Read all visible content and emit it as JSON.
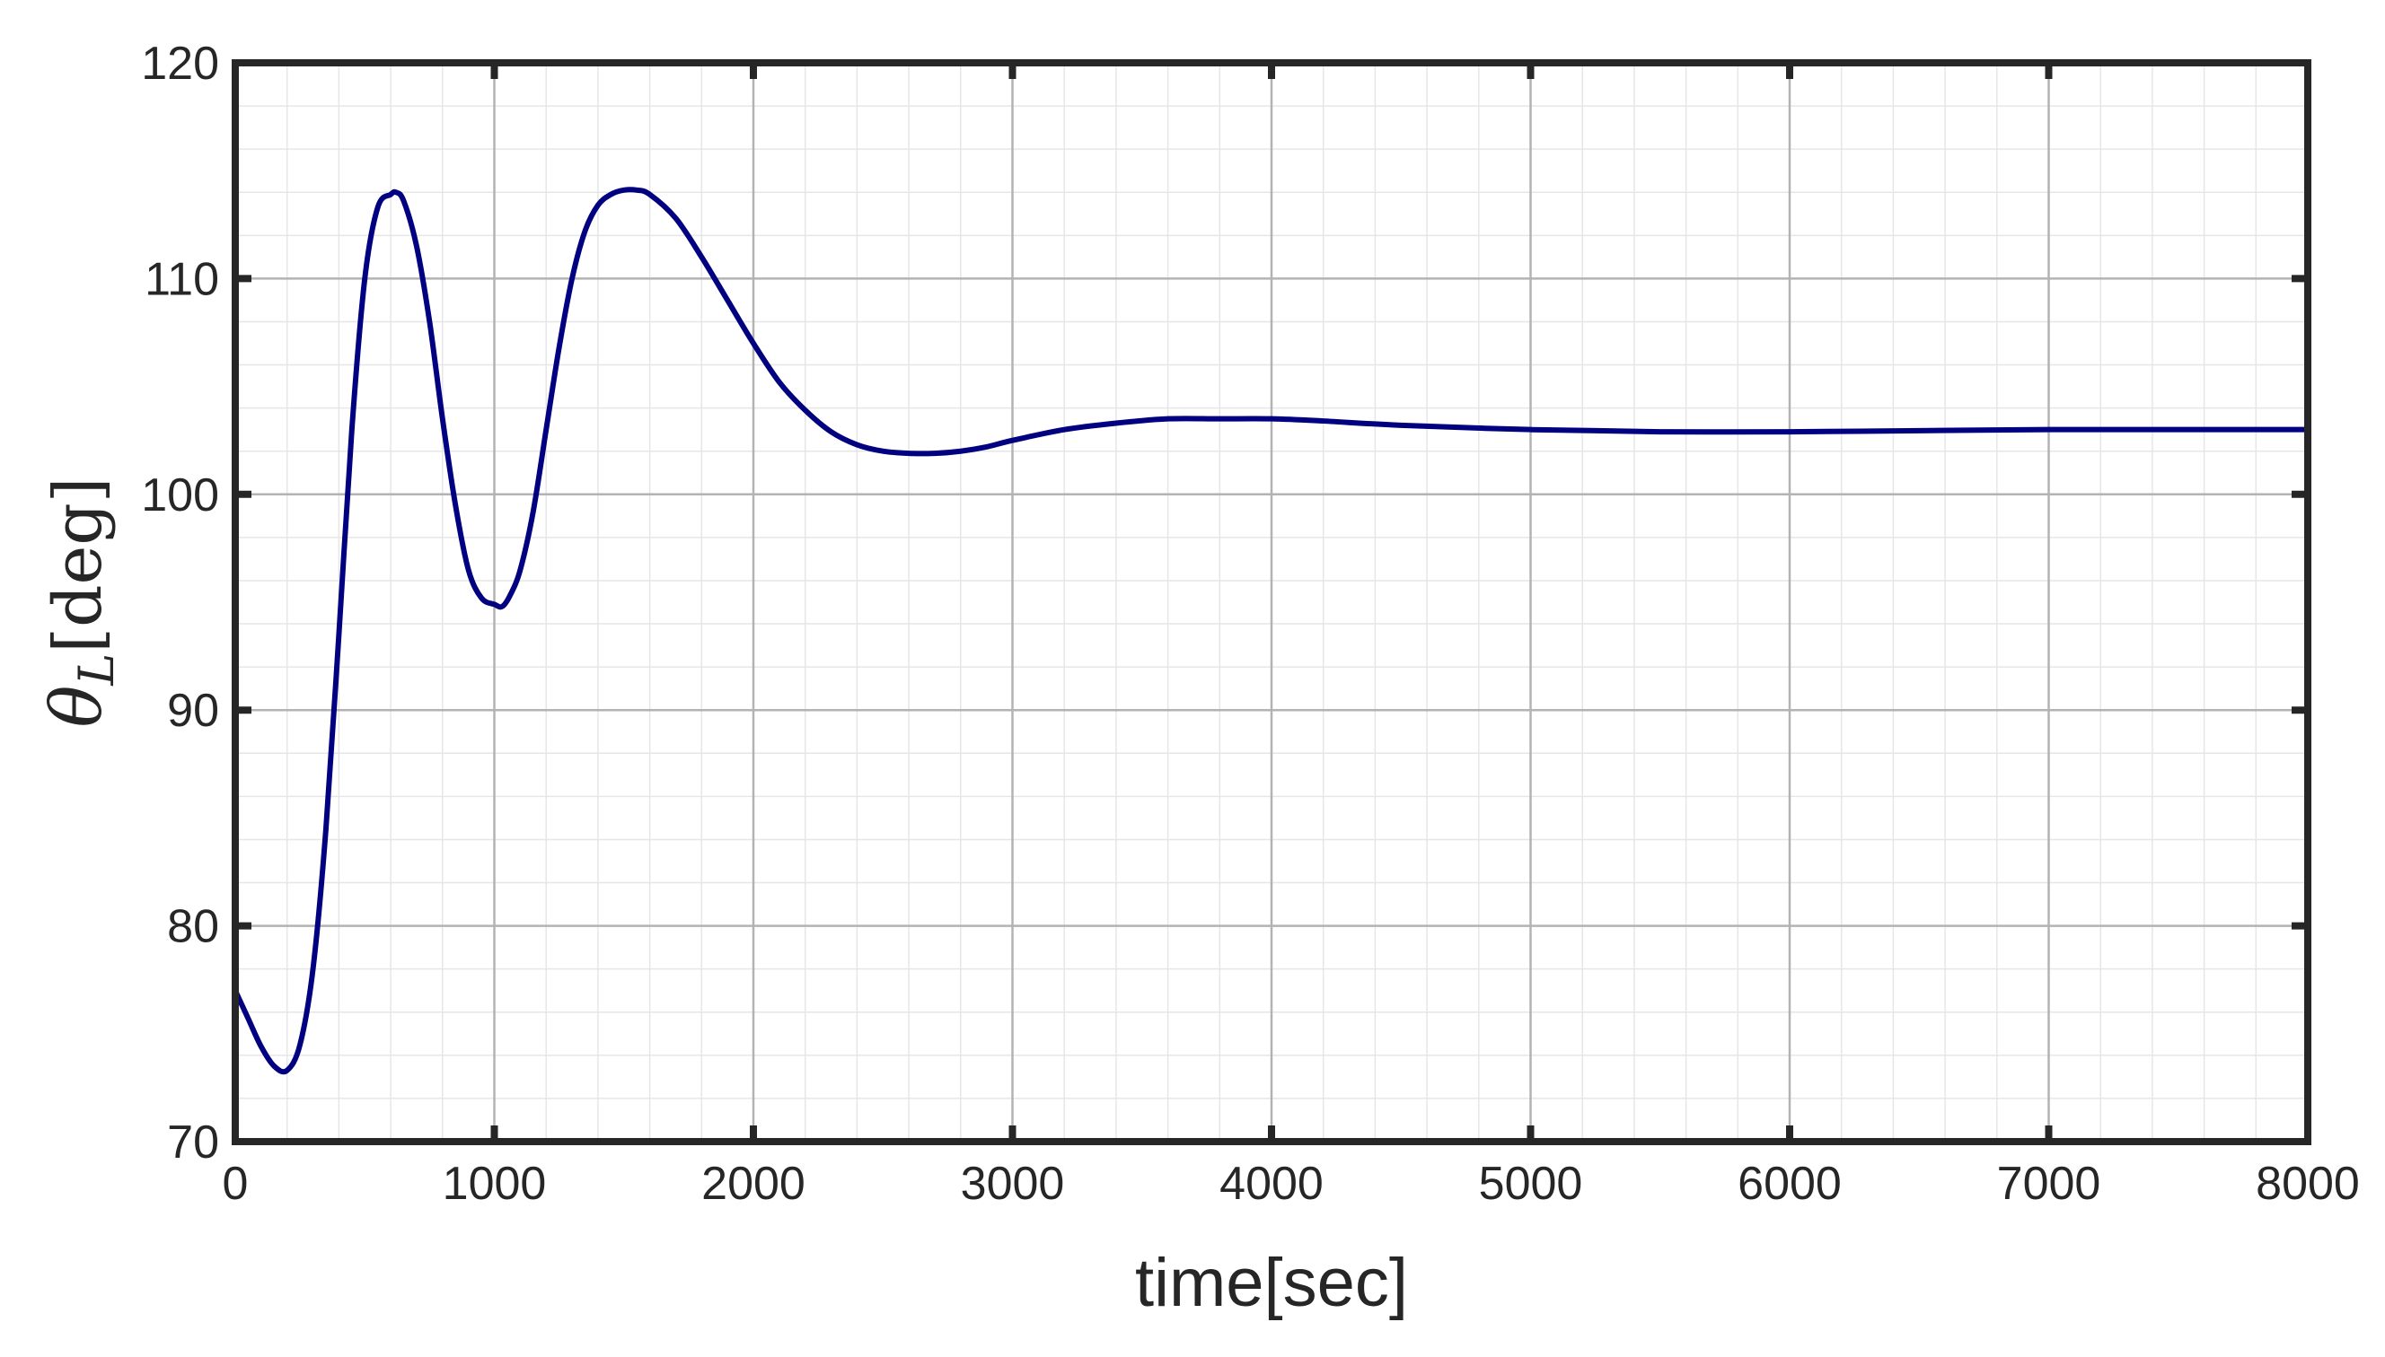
{
  "chart_data": {
    "type": "line",
    "title": "",
    "xlabel": "time[sec]",
    "ylabel": {
      "symbol": "θ",
      "subscript": "L",
      "unit": "[deg]"
    },
    "xlim": [
      0,
      8000
    ],
    "ylim": [
      70,
      120
    ],
    "xticks": [
      0,
      1000,
      2000,
      3000,
      4000,
      5000,
      6000,
      7000,
      8000
    ],
    "yticks": [
      70,
      80,
      90,
      100,
      110,
      120
    ],
    "x_tick_labels": [
      "0",
      "1000",
      "2000",
      "3000",
      "4000",
      "5000",
      "6000",
      "7000",
      "8000"
    ],
    "y_tick_labels": [
      "70",
      "80",
      "90",
      "100",
      "110",
      "120"
    ],
    "grid": "major and minor",
    "legend": "none",
    "series": [
      {
        "color": "#000080",
        "x": [
          0,
          50,
          100,
          150,
          200,
          250,
          300,
          350,
          400,
          450,
          500,
          550,
          600,
          620,
          650,
          700,
          750,
          800,
          850,
          900,
          950,
          1000,
          1030,
          1060,
          1100,
          1150,
          1200,
          1250,
          1300,
          1350,
          1400,
          1450,
          1500,
          1550,
          1600,
          1700,
          1800,
          1900,
          2000,
          2100,
          2200,
          2300,
          2400,
          2500,
          2600,
          2700,
          2800,
          2900,
          3000,
          3200,
          3400,
          3600,
          3800,
          4000,
          4200,
          4500,
          5000,
          5500,
          6000,
          6500,
          7000,
          7500,
          8000
        ],
        "values": [
          77,
          75.7,
          74.4,
          73.5,
          73.3,
          74.5,
          78,
          84.5,
          93.5,
          103,
          110,
          113.3,
          113.9,
          114,
          113.6,
          111.5,
          108,
          103.5,
          99.5,
          96.5,
          95.2,
          94.9,
          94.8,
          95.3,
          96.5,
          99.2,
          103,
          106.8,
          110,
          112.2,
          113.4,
          113.9,
          114.1,
          114.1,
          113.9,
          112.8,
          111,
          109,
          107,
          105.2,
          103.9,
          102.9,
          102.3,
          102,
          101.9,
          101.9,
          102,
          102.2,
          102.5,
          103,
          103.3,
          103.5,
          103.5,
          103.5,
          103.4,
          103.2,
          103.0,
          102.9,
          102.9,
          102.95,
          103,
          103,
          103
        ]
      }
    ]
  }
}
